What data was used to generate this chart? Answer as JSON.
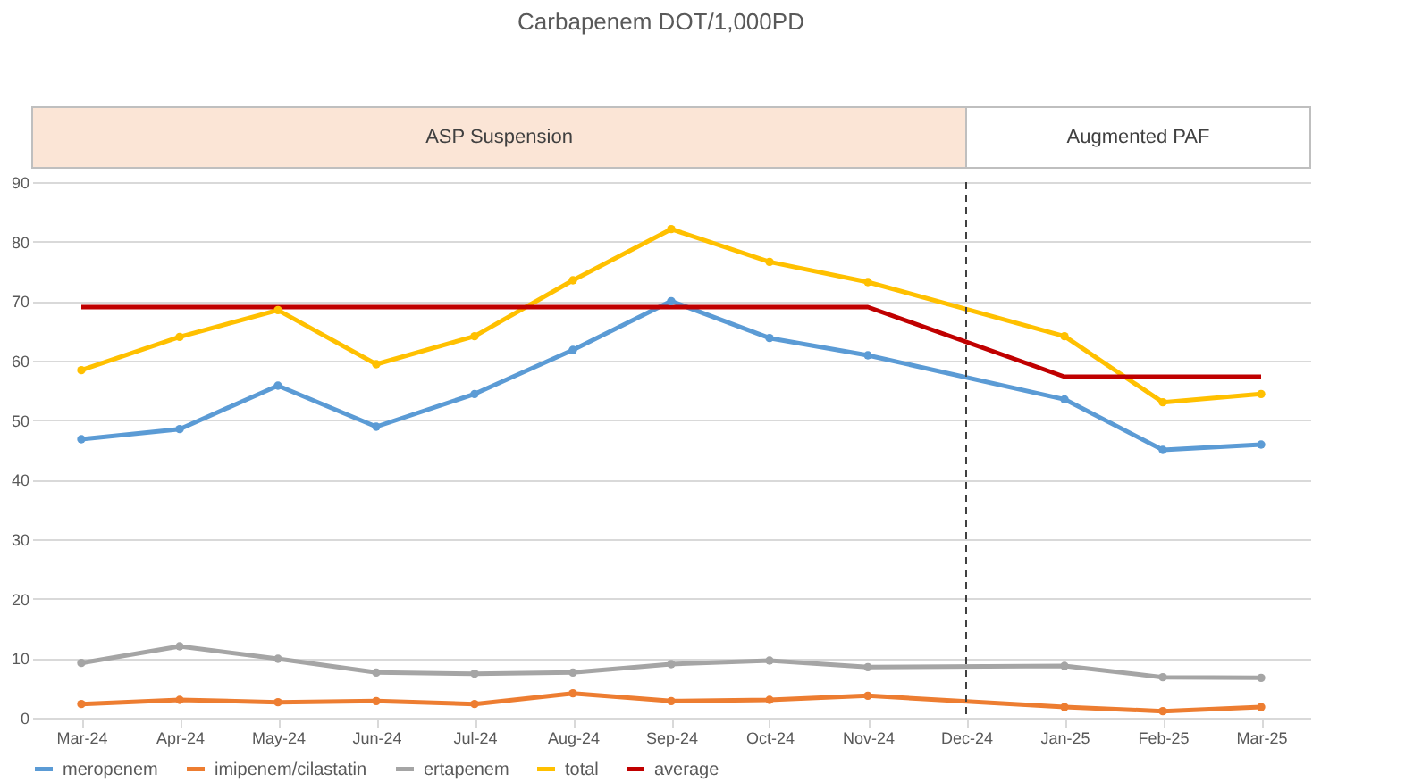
{
  "chart_data": {
    "type": "line",
    "title": "Carbapenem DOT/1,000PD",
    "categories": [
      "Mar-24",
      "Apr-24",
      "May-24",
      "Jun-24",
      "Jul-24",
      "Aug-24",
      "Sep-24",
      "Oct-24",
      "Nov-24",
      "Dec-24",
      "Jan-25",
      "Feb-25",
      "Mar-25"
    ],
    "series": [
      {
        "name": "meropenem",
        "color": "#5b9bd5",
        "values": [
          46.8,
          48.5,
          55.8,
          48.9,
          54.4,
          61.8,
          70,
          63.8,
          60.9,
          null,
          53.5,
          45,
          45.9
        ]
      },
      {
        "name": "imipenem/cilastatin",
        "color": "#ed7d31",
        "values": [
          2.3,
          3,
          2.6,
          2.8,
          2.3,
          4.1,
          2.8,
          3,
          3.7,
          null,
          1.8,
          1.1,
          1.8
        ]
      },
      {
        "name": "ertapenem",
        "color": "#a5a5a5",
        "values": [
          9.2,
          12,
          9.9,
          7.6,
          7.4,
          7.6,
          9,
          9.6,
          8.5,
          null,
          8.7,
          6.8,
          6.7
        ]
      },
      {
        "name": "total",
        "color": "#ffc000",
        "values": [
          58.4,
          64,
          68.5,
          59.4,
          64.1,
          73.5,
          82.1,
          76.6,
          73.2,
          null,
          64.1,
          53,
          54.4
        ]
      },
      {
        "name": "average",
        "color": "#c00000",
        "marker": "none",
        "values": [
          69,
          69,
          69,
          69,
          69,
          69,
          69,
          69,
          69,
          null,
          57.3,
          57.3,
          57.3
        ]
      }
    ],
    "ylim": [
      0,
      90
    ],
    "yticks": [
      0,
      10,
      20,
      30,
      40,
      50,
      60,
      70,
      80,
      90
    ],
    "grid": "y",
    "legend": "bottom",
    "marker": "circle",
    "line_style": "solid",
    "ref_lines": [
      {
        "axis": "x",
        "value": "Dec-24",
        "line_style": "dashed",
        "color": "#404040"
      }
    ],
    "annotations": [
      "ASP Suspension",
      "Augmented PAF"
    ]
  }
}
